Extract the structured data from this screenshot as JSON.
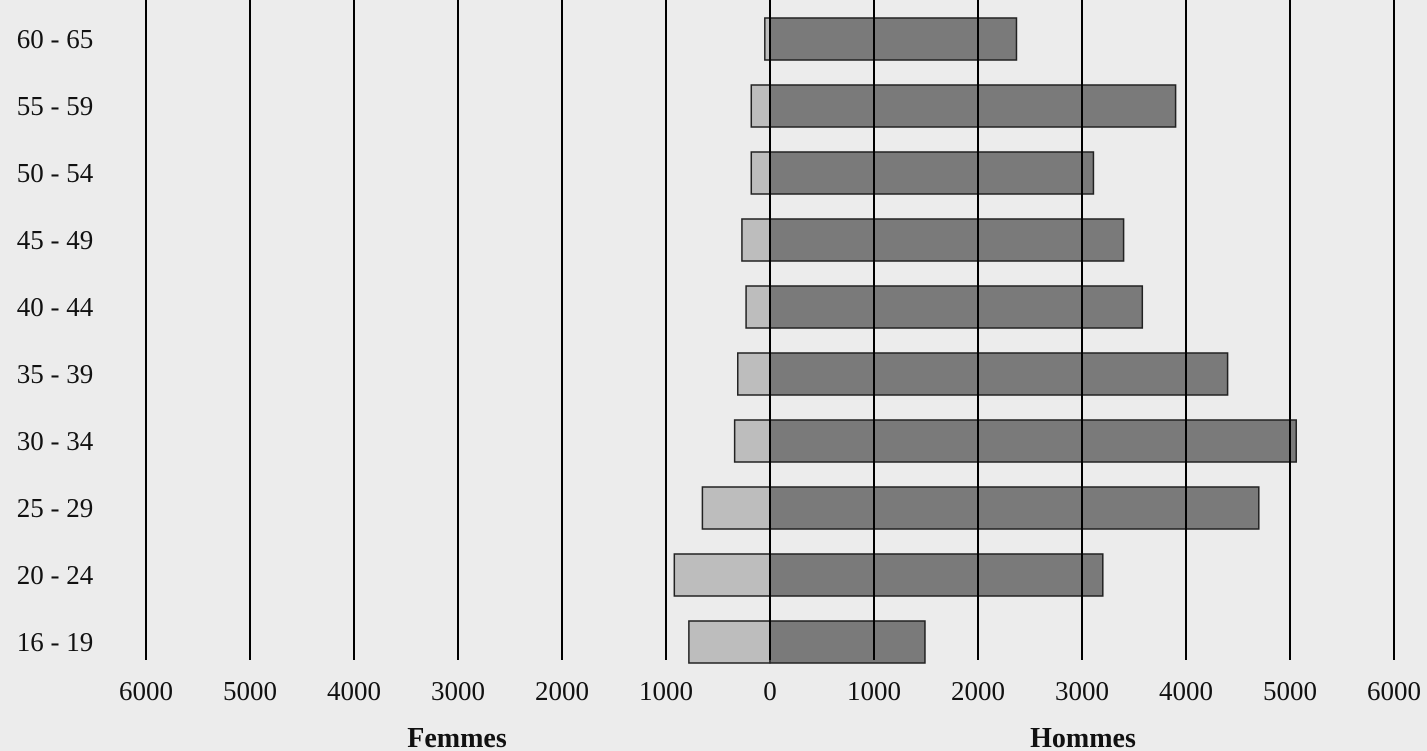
{
  "chart_data": {
    "type": "bar",
    "orientation": "horizontal-population-pyramid",
    "categories": [
      "60 - 65",
      "55 - 59",
      "50 - 54",
      "45 - 49",
      "40 - 44",
      "35 - 39",
      "30 - 34",
      "25 - 29",
      "20 - 24",
      "16 - 19"
    ],
    "series": [
      {
        "name": "Femmes",
        "values": [
          50,
          180,
          180,
          270,
          230,
          310,
          340,
          650,
          920,
          780
        ],
        "color": "#bdbdbd"
      },
      {
        "name": "Hommes",
        "values": [
          2370,
          3900,
          3110,
          3400,
          3580,
          4400,
          5060,
          4700,
          3200,
          1490
        ],
        "color": "#7a7a7a"
      }
    ],
    "xticks": [
      "6000",
      "5000",
      "4000",
      "3000",
      "2000",
      "1000",
      "0",
      "1000",
      "2000",
      "3000",
      "4000",
      "5000",
      "6000"
    ],
    "xlim": [
      -6000,
      6000
    ],
    "xlabel_left": "Femmes",
    "xlabel_right": "Hommes",
    "grid": true
  }
}
